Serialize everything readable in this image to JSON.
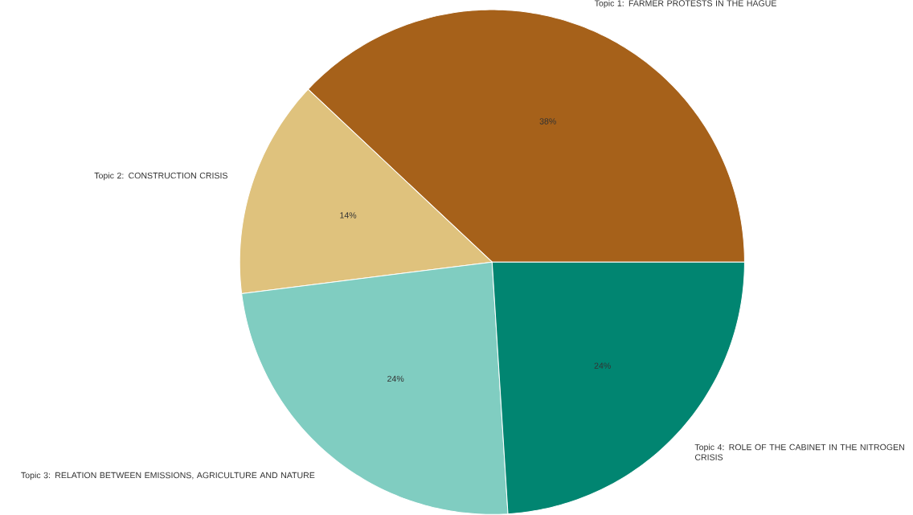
{
  "chart_data": {
    "type": "pie",
    "categories": [
      "Topic 1: FARMER PROTESTS IN THE HAGUE",
      "Topic 2: CONSTRUCTION CRISIS",
      "Topic 3: RELATION BETWEEN EMISSIONS, AGRICULTURE AND NATURE",
      "Topic 4: ROLE OF THE CABINET IN THE NITROGEN CRISIS"
    ],
    "values": [
      38,
      14,
      24,
      24
    ],
    "value_labels": [
      "38%",
      "14%",
      "24%",
      "24%"
    ],
    "colors": [
      "#a6611a",
      "#dfc27d",
      "#80cdc1",
      "#018571"
    ]
  }
}
